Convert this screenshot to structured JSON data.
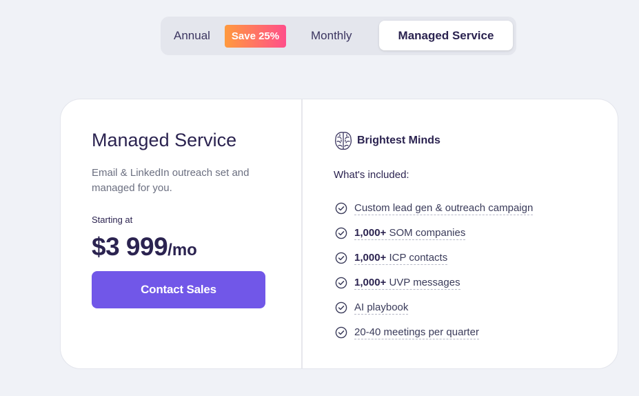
{
  "toggle": {
    "annual_label": "Annual",
    "save_badge": "Save 25%",
    "monthly_label": "Monthly",
    "managed_label": "Managed Service",
    "active": "Managed Service"
  },
  "plan": {
    "title": "Managed Service",
    "description": "Email & LinkedIn outreach set and managed for you.",
    "starting_label": "Starting at",
    "price": "$3 999",
    "price_unit": "/mo",
    "cta_label": "Contact Sales"
  },
  "provider": {
    "icon": "brain-icon",
    "name": "Brightest Minds"
  },
  "included_heading": "What's included:",
  "features": [
    {
      "bold": "",
      "text": "Custom lead gen & outreach campaign"
    },
    {
      "bold": "1,000+",
      "text": " SOM companies"
    },
    {
      "bold": "1,000+",
      "text": " ICP contacts"
    },
    {
      "bold": "1,000+",
      "text": " UVP messages"
    },
    {
      "bold": "",
      "text": "AI playbook"
    },
    {
      "bold": "",
      "text": "20-40 meetings per quarter"
    }
  ],
  "colors": {
    "background": "#f0f2f7",
    "accent": "#7157e8",
    "text_primary": "#2b2350",
    "badge_gradient_start": "#ff9a3e",
    "badge_gradient_end": "#ff4f8a"
  }
}
